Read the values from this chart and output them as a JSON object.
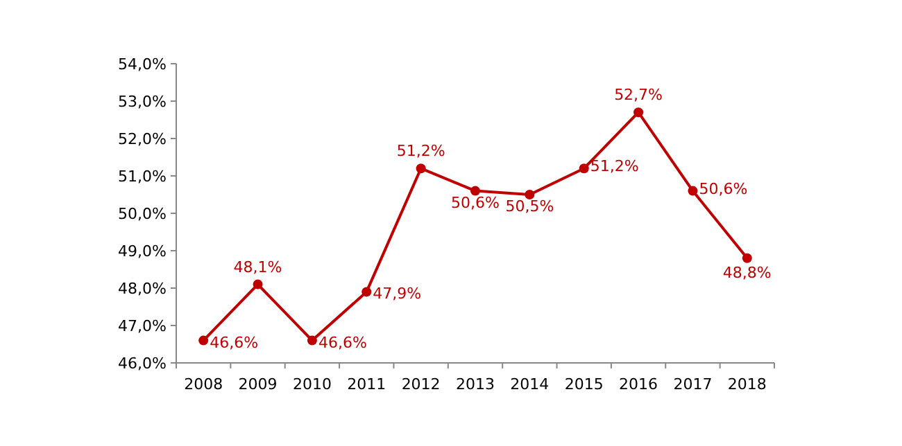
{
  "chart_data": {
    "type": "line",
    "categories": [
      "2008",
      "2009",
      "2010",
      "2011",
      "2012",
      "2013",
      "2014",
      "2015",
      "2016",
      "2017",
      "2018"
    ],
    "series": [
      {
        "color": "#c00000",
        "values": [
          46.6,
          48.1,
          46.6,
          47.9,
          51.2,
          50.6,
          50.5,
          51.2,
          52.7,
          50.6,
          48.8
        ],
        "value_labels": [
          "46,6%",
          "48,1%",
          "46,6%",
          "47,9%",
          "51,2%",
          "50,6%",
          "50,5%",
          "51,2%",
          "52,7%",
          "50,6%",
          "48,8%"
        ]
      }
    ],
    "ylim": [
      46,
      54
    ],
    "yticks": [
      {
        "value": 46,
        "label": "46,0%"
      },
      {
        "value": 47,
        "label": "47,0%"
      },
      {
        "value": 48,
        "label": "48,0%"
      },
      {
        "value": 49,
        "label": "49,0%"
      },
      {
        "value": 50,
        "label": "50,0%"
      },
      {
        "value": 51,
        "label": "51,0%"
      },
      {
        "value": 52,
        "label": "52,0%"
      },
      {
        "value": 53,
        "label": "53,0%"
      },
      {
        "value": 54,
        "label": "54,0%"
      }
    ],
    "marker": "circle",
    "line_style": "solid",
    "grid": false
  }
}
